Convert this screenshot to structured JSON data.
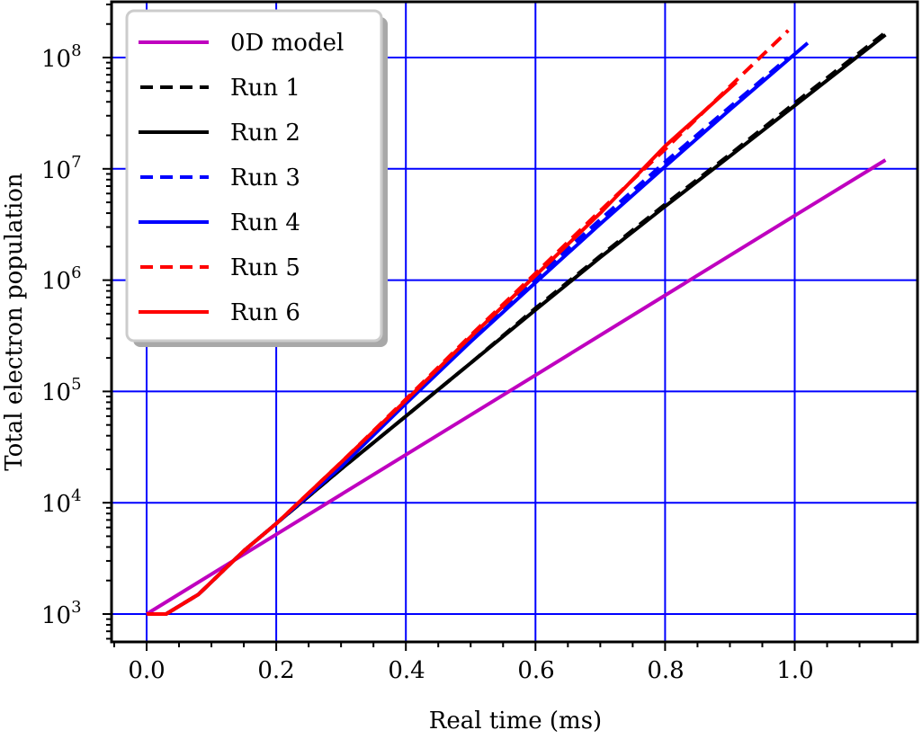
{
  "chart_data": {
    "type": "line",
    "title": "",
    "xlabel": "Real time (ms)",
    "ylabel": "Total electron population",
    "xscale": "linear",
    "yscale": "log",
    "xlim": [
      -0.05,
      1.19
    ],
    "ylim": [
      600,
      300000000
    ],
    "xticks": [
      0.0,
      0.2,
      0.4,
      0.6,
      0.8,
      1.0
    ],
    "xtick_labels": [
      "0.0",
      "0.2",
      "0.4",
      "0.6",
      "0.8",
      "1.0"
    ],
    "yticks": [
      1000,
      10000,
      100000,
      1000000,
      10000000,
      100000000
    ],
    "ytick_labels": [
      "10^3",
      "10^4",
      "10^5",
      "10^6",
      "10^7",
      "10^8"
    ],
    "grid": true,
    "grid_color": "#0000ff",
    "legend_position": "upper left",
    "series": [
      {
        "name": "0D model",
        "color": "#bf00bf",
        "dash": "solid",
        "x": [
          0.0,
          0.2,
          0.4,
          0.6,
          0.8,
          1.0,
          1.14
        ],
        "y": [
          1000,
          5200,
          27000,
          140000,
          730000,
          3800000,
          12000000
        ]
      },
      {
        "name": "Run 1",
        "color": "#000000",
        "dash": "dashed",
        "x": [
          0.0,
          0.03,
          0.08,
          0.15,
          0.2,
          0.3,
          0.4,
          0.5,
          0.6,
          0.7,
          0.8,
          0.9,
          1.0,
          1.14
        ],
        "y": [
          1000,
          1000,
          1500,
          3700,
          6500,
          20000,
          60000,
          180000,
          560000,
          1650000,
          4800000,
          13500000,
          39000000,
          168000000
        ]
      },
      {
        "name": "Run 2",
        "color": "#000000",
        "dash": "solid",
        "x": [
          0.0,
          0.03,
          0.08,
          0.15,
          0.2,
          0.3,
          0.4,
          0.5,
          0.6,
          0.7,
          0.8,
          0.9,
          1.0,
          1.14
        ],
        "y": [
          1000,
          1000,
          1500,
          3700,
          6500,
          20000,
          60000,
          180000,
          540000,
          1600000,
          4600000,
          13000000,
          37000000,
          160000000
        ]
      },
      {
        "name": "Run 3",
        "color": "#0000ff",
        "dash": "dashed",
        "x": [
          0.0,
          0.03,
          0.08,
          0.15,
          0.2,
          0.3,
          0.4,
          0.5,
          0.6,
          0.7,
          0.8,
          0.9,
          0.99
        ],
        "y": [
          1000,
          1000,
          1500,
          3700,
          6500,
          22000,
          80000,
          300000,
          1050000,
          3500000,
          11500000,
          36000000,
          100000000
        ]
      },
      {
        "name": "Run 4",
        "color": "#0000ff",
        "dash": "solid",
        "x": [
          0.0,
          0.03,
          0.08,
          0.15,
          0.2,
          0.3,
          0.4,
          0.5,
          0.6,
          0.7,
          0.8,
          0.9,
          1.02
        ],
        "y": [
          1000,
          1000,
          1500,
          3700,
          6500,
          21000,
          78000,
          280000,
          950000,
          3200000,
          10500000,
          34000000,
          135000000
        ]
      },
      {
        "name": "Run 5",
        "color": "#ff0000",
        "dash": "dashed",
        "x": [
          0.0,
          0.03,
          0.08,
          0.15,
          0.2,
          0.3,
          0.4,
          0.5,
          0.6,
          0.7,
          0.8,
          0.9,
          0.99
        ],
        "y": [
          1000,
          1000,
          1500,
          3700,
          6500,
          23000,
          85000,
          320000,
          1150000,
          4200000,
          15000000,
          55000000,
          175000000
        ]
      },
      {
        "name": "Run 6",
        "color": "#ff0000",
        "dash": "solid",
        "x": [
          0.0,
          0.03,
          0.08,
          0.15,
          0.2,
          0.3,
          0.4,
          0.5,
          0.6,
          0.7,
          0.8,
          0.91
        ],
        "y": [
          1000,
          1000,
          1500,
          3700,
          6500,
          23000,
          83000,
          310000,
          1100000,
          4000000,
          16000000,
          60000000
        ]
      }
    ]
  },
  "legend": {
    "items": [
      {
        "label": "0D model"
      },
      {
        "label": "Run 1"
      },
      {
        "label": "Run 2"
      },
      {
        "label": "Run 3"
      },
      {
        "label": "Run 4"
      },
      {
        "label": "Run 5"
      },
      {
        "label": "Run 6"
      }
    ]
  },
  "axes": {
    "xlabel": "Real time (ms)",
    "ylabel": "Total electron population",
    "xtick_labels": [
      "0.0",
      "0.2",
      "0.4",
      "0.6",
      "0.8",
      "1.0"
    ],
    "ytick_bases": [
      "10",
      "10",
      "10",
      "10",
      "10",
      "10"
    ],
    "ytick_exps": [
      "3",
      "4",
      "5",
      "6",
      "7",
      "8"
    ]
  }
}
